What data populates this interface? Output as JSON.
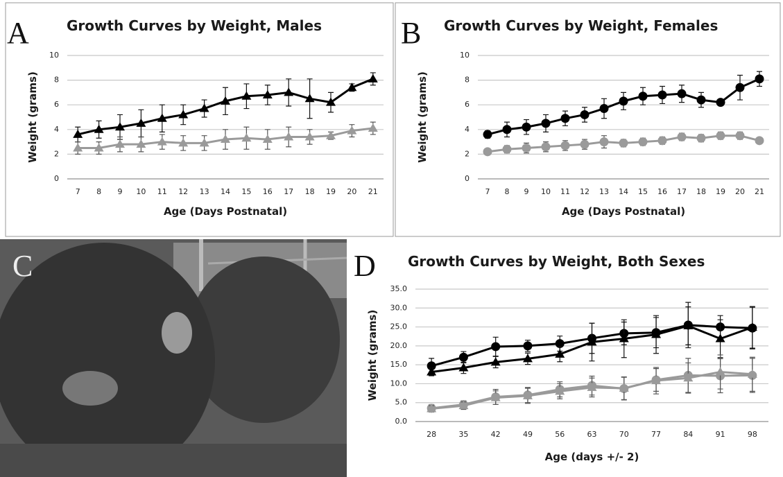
{
  "panel_labels": [
    "A",
    "B",
    "C",
    "D"
  ],
  "chart_data": [
    {
      "type": "line",
      "title": "Growth Curves by Weight, Males",
      "x_label": "Age (Days Postnatal)",
      "y_label": "Weight (grams)",
      "categories": [
        7,
        8,
        9,
        10,
        11,
        12,
        13,
        14,
        15,
        16,
        17,
        18,
        19,
        20,
        21
      ],
      "ylim": [
        0,
        10
      ],
      "yticks": [
        0,
        2,
        4,
        6,
        8,
        10
      ],
      "grid": true,
      "series": [
        {
          "color": "#000000",
          "marker": "triangle",
          "values": [
            3.6,
            4.0,
            4.2,
            4.5,
            4.9,
            5.2,
            5.7,
            6.3,
            6.7,
            6.8,
            7.0,
            6.5,
            6.2,
            7.4,
            8.1
          ],
          "errors": [
            0.6,
            0.7,
            1.0,
            1.1,
            1.1,
            0.8,
            0.7,
            1.1,
            1.0,
            0.8,
            1.1,
            1.6,
            0.8,
            0.3,
            0.5
          ]
        },
        {
          "color": "#9a9a9a",
          "marker": "triangle",
          "values": [
            2.5,
            2.5,
            2.8,
            2.8,
            3.0,
            2.9,
            2.9,
            3.2,
            3.3,
            3.2,
            3.4,
            3.4,
            3.5,
            3.9,
            4.1
          ],
          "errors": [
            0.5,
            0.5,
            0.6,
            0.6,
            0.6,
            0.6,
            0.6,
            0.8,
            0.9,
            0.8,
            0.8,
            0.6,
            0.3,
            0.5,
            0.5
          ]
        }
      ]
    },
    {
      "type": "line",
      "title": "Growth Curves by Weight, Females",
      "x_label": "Age (Days Postnatal)",
      "y_label": "Weight (grams)",
      "categories": [
        7,
        8,
        9,
        10,
        11,
        12,
        13,
        14,
        15,
        16,
        17,
        18,
        19,
        20,
        21
      ],
      "ylim": [
        0,
        10
      ],
      "yticks": [
        0,
        2,
        4,
        6,
        8,
        10
      ],
      "grid": true,
      "series": [
        {
          "color": "#000000",
          "marker": "circle",
          "values": [
            3.6,
            4.0,
            4.2,
            4.5,
            4.9,
            5.2,
            5.7,
            6.3,
            6.7,
            6.8,
            6.9,
            6.4,
            6.2,
            7.4,
            8.1
          ],
          "errors": [
            0.3,
            0.6,
            0.6,
            0.7,
            0.6,
            0.6,
            0.8,
            0.7,
            0.7,
            0.7,
            0.7,
            0.6,
            0.2,
            1.0,
            0.6
          ]
        },
        {
          "color": "#9a9a9a",
          "marker": "circle",
          "values": [
            2.2,
            2.4,
            2.5,
            2.6,
            2.7,
            2.8,
            3.0,
            2.9,
            3.0,
            3.1,
            3.4,
            3.3,
            3.5,
            3.5,
            3.1
          ],
          "errors": [
            0.2,
            0.3,
            0.4,
            0.4,
            0.4,
            0.4,
            0.5,
            0.3,
            0.3,
            0.3,
            0.3,
            0.3,
            0.3,
            0.3,
            0.2
          ]
        }
      ]
    },
    {
      "type": "line",
      "title": "Growth Curves by Weight, Both Sexes",
      "x_label": "Age (days +/- 2)",
      "y_label": "Weight (grams)",
      "categories": [
        28,
        35,
        42,
        49,
        56,
        63,
        70,
        77,
        84,
        91,
        98
      ],
      "ylim": [
        0,
        35
      ],
      "yticks": [
        {
          "value": 0,
          "label": "0.0"
        },
        {
          "value": 5,
          "label": "5.0"
        },
        {
          "value": 10,
          "label": "10.0"
        },
        {
          "value": 15,
          "label": "15.0"
        },
        {
          "value": 20,
          "label": "20.0"
        },
        {
          "value": 25,
          "label": "25.0"
        },
        {
          "value": 30,
          "label": "30.0"
        },
        {
          "value": 35,
          "label": "35.0"
        }
      ],
      "grid": true,
      "series": [
        {
          "color": "#000000",
          "marker": "circle",
          "values": [
            14.7,
            17.0,
            19.8,
            20.0,
            20.6,
            22.0,
            23.3,
            23.5,
            25.5,
            25.0,
            24.7
          ],
          "errors": [
            2.0,
            1.5,
            2.5,
            1.5,
            2.0,
            4.0,
            3.0,
            4.0,
            6.0,
            3.0,
            5.5
          ]
        },
        {
          "color": "#000000",
          "marker": "triangle",
          "values": [
            13.1,
            14.2,
            15.7,
            16.6,
            17.8,
            21.0,
            21.9,
            23.0,
            25.3,
            21.9,
            24.9
          ],
          "errors": [
            1.0,
            1.5,
            1.5,
            1.5,
            2.0,
            5.0,
            5.0,
            5.0,
            5.0,
            5.0,
            5.5
          ]
        },
        {
          "color": "#9a9a9a",
          "marker": "circle",
          "values": [
            3.5,
            4.5,
            6.5,
            7.0,
            8.5,
            9.5,
            8.7,
            11.0,
            12.2,
            12.1,
            12.2
          ],
          "errors": [
            1.0,
            1.0,
            2.0,
            2.0,
            2.0,
            2.5,
            3.0,
            3.0,
            4.5,
            4.5,
            4.5
          ]
        },
        {
          "color": "#9a9a9a",
          "marker": "triangle",
          "values": [
            3.4,
            4.2,
            6.3,
            6.8,
            8.0,
            9.0,
            8.8,
            10.8,
            11.5,
            13.1,
            12.5
          ],
          "errors": [
            0.8,
            1.0,
            1.8,
            2.0,
            2.0,
            2.5,
            3.0,
            3.5,
            4.0,
            4.5,
            4.5
          ]
        }
      ]
    }
  ]
}
